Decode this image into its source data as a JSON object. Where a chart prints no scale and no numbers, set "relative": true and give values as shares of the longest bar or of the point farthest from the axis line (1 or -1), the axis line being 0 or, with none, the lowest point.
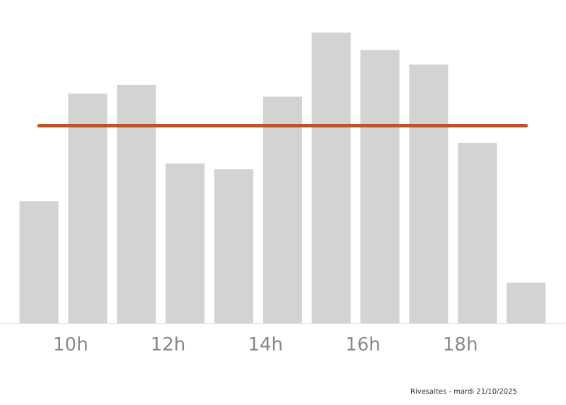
{
  "chart_data": {
    "type": "bar",
    "relative": true,
    "x": [
      9.35,
      10.35,
      11.35,
      12.35,
      13.35,
      14.35,
      15.35,
      16.35,
      17.35,
      18.35,
      19.35
    ],
    "values": [
      0.42,
      0.79,
      0.82,
      0.55,
      0.53,
      0.78,
      1,
      0.94,
      0.89,
      0.62,
      0.14
    ],
    "color": "#d3d3d3",
    "xlim": [
      8.55,
      20.17
    ],
    "xticks": [
      {
        "value": 10,
        "label": "10h"
      },
      {
        "value": 12,
        "label": "12h"
      },
      {
        "value": 14,
        "label": "14h"
      },
      {
        "value": 16,
        "label": "16h"
      },
      {
        "value": 18,
        "label": "18h"
      }
    ],
    "ref_lines": [
      {
        "axis": "y",
        "value": 0.68,
        "label": null,
        "color": "#c8501e"
      }
    ],
    "annotations": [
      "Rivesaltes - mardi 21/10/2025"
    ],
    "grid": false,
    "legend": false
  }
}
